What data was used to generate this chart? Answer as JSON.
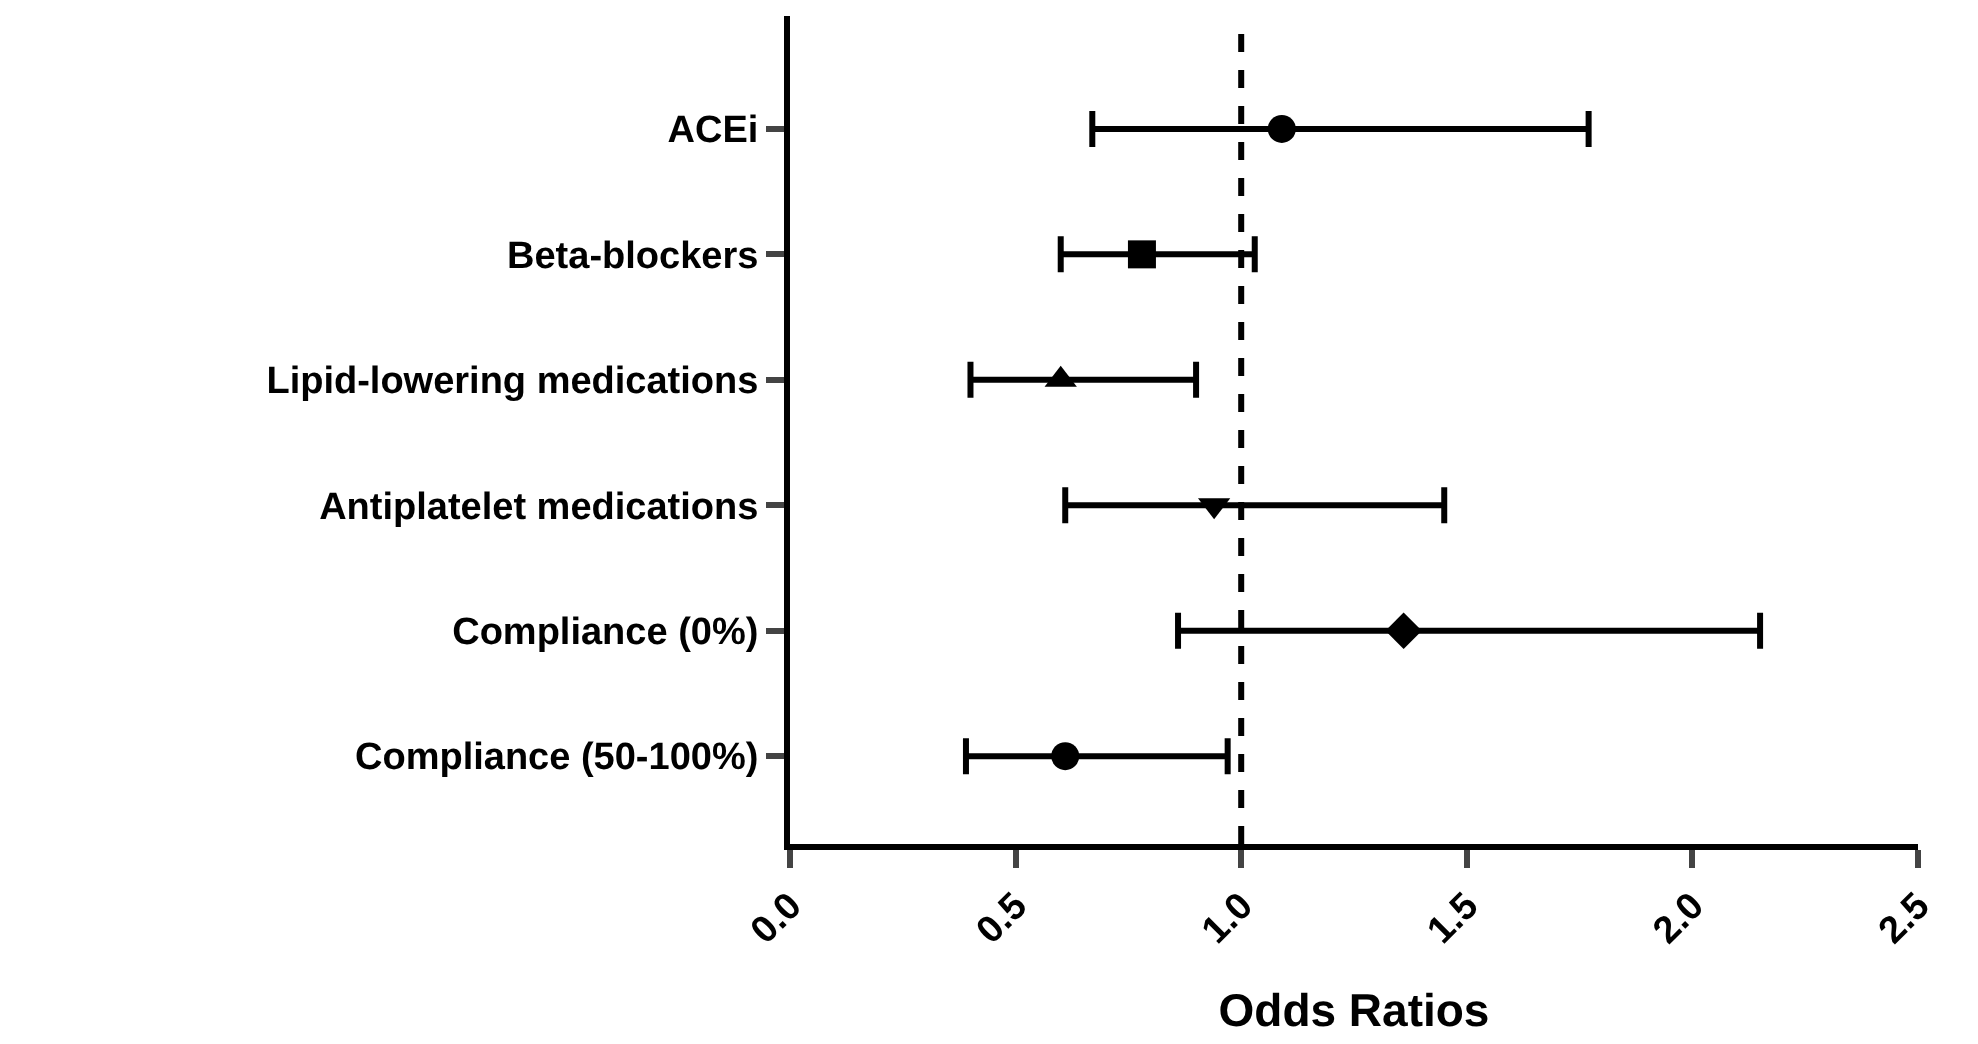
{
  "chart_data": {
    "type": "scatter",
    "orientation": "horizontal",
    "xlabel": "Odds Ratios",
    "categories": [
      "ACEi",
      "Beta-blockers",
      "Lipid-lowering medications",
      "Antiplatelet medications",
      "Compliance (0%)",
      "Compliance (50-100%)"
    ],
    "series": [
      {
        "color": "#000000",
        "marker": "circle",
        "values": [
          1.09,
          null,
          null,
          null,
          null,
          null
        ],
        "errors": [
          [
            0.67,
            1.77
          ],
          null,
          null,
          null,
          null,
          null
        ]
      },
      {
        "color": "#000000",
        "marker": "square",
        "values": [
          null,
          0.78,
          null,
          null,
          null,
          null
        ],
        "errors": [
          null,
          [
            0.6,
            1.03
          ],
          null,
          null,
          null,
          null
        ]
      },
      {
        "color": "#000000",
        "marker": "triangle",
        "values": [
          null,
          null,
          0.6,
          null,
          null,
          null
        ],
        "errors": [
          null,
          null,
          [
            0.4,
            0.9
          ],
          null,
          null,
          null
        ]
      },
      {
        "color": "#000000",
        "marker": "triangle-down",
        "values": [
          null,
          null,
          null,
          0.94,
          null,
          null
        ],
        "errors": [
          null,
          null,
          null,
          [
            0.61,
            1.45
          ],
          null,
          null
        ]
      },
      {
        "color": "#000000",
        "marker": "diamond",
        "values": [
          null,
          null,
          null,
          null,
          1.36,
          null
        ],
        "errors": [
          null,
          null,
          null,
          null,
          [
            0.86,
            2.15
          ],
          null
        ]
      },
      {
        "color": "#000000",
        "marker": "circle",
        "values": [
          null,
          null,
          null,
          null,
          null,
          0.61
        ],
        "errors": [
          null,
          null,
          null,
          null,
          null,
          [
            0.39,
            0.97
          ]
        ]
      }
    ],
    "xlim": [
      0,
      2.5
    ],
    "xticks": [
      {
        "value": 0,
        "label": "0.0"
      },
      {
        "value": 0.5,
        "label": "0.5"
      },
      {
        "value": 1,
        "label": "1.0"
      },
      {
        "value": 1.5,
        "label": "1.5"
      },
      {
        "value": 2,
        "label": "2.0"
      },
      {
        "value": 2.5,
        "label": "2.5"
      }
    ],
    "ref_lines": [
      {
        "axis": "x",
        "value": 1,
        "label": null,
        "color": "#000000",
        "line_style": "dashed"
      }
    ]
  }
}
